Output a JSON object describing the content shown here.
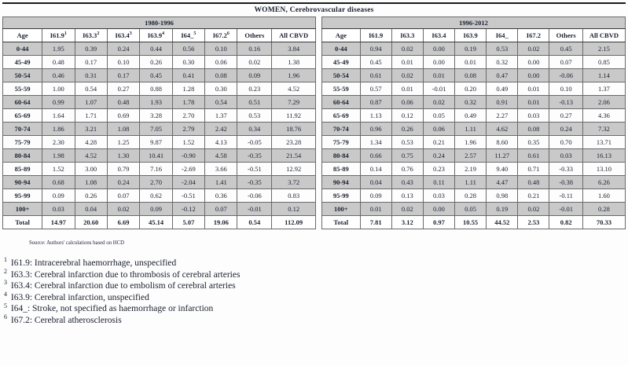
{
  "title": "WOMEN, Cerebrovascular diseases",
  "source": "Source: Authors' calculations based on HCD",
  "colors": {
    "row_shade": "#c9c9c9",
    "text": "#1c2130",
    "grid": "#6a6a6a"
  },
  "tables": [
    {
      "period": "1980-1996",
      "columns": [
        "Age",
        "I61.9",
        "I63.3",
        "I63.4",
        "I63.9",
        "I64_",
        "I67.2",
        "Others",
        "All CBVD"
      ],
      "column_sups": [
        "",
        "1",
        "2",
        "3",
        "4",
        "5",
        "6",
        "",
        ""
      ],
      "rows": [
        [
          "0-44",
          "1.95",
          "0.39",
          "0.24",
          "0.44",
          "0.56",
          "0.10",
          "0.16",
          "3.84"
        ],
        [
          "45-49",
          "0.48",
          "0.17",
          "0.10",
          "0.26",
          "0.30",
          "0.06",
          "0.02",
          "1.38"
        ],
        [
          "50-54",
          "0.46",
          "0.31",
          "0.17",
          "0.45",
          "0.41",
          "0.08",
          "0.09",
          "1.96"
        ],
        [
          "55-59",
          "1.00",
          "0.54",
          "0.27",
          "0.88",
          "1.28",
          "0.30",
          "0.23",
          "4.52"
        ],
        [
          "60-64",
          "0.99",
          "1.07",
          "0.48",
          "1.93",
          "1.78",
          "0.54",
          "0.51",
          "7.29"
        ],
        [
          "65-69",
          "1.64",
          "1.71",
          "0.69",
          "3.28",
          "2.70",
          "1.37",
          "0.53",
          "11.92"
        ],
        [
          "70-74",
          "1.86",
          "3.21",
          "1.08",
          "7.05",
          "2.79",
          "2.42",
          "0.34",
          "18.76"
        ],
        [
          "75-79",
          "2.30",
          "4.28",
          "1.25",
          "9.87",
          "1.52",
          "4.13",
          "-0.05",
          "23.28"
        ],
        [
          "80-84",
          "1.98",
          "4.52",
          "1.30",
          "10.41",
          "-0.90",
          "4.58",
          "-0.35",
          "21.54"
        ],
        [
          "85-89",
          "1.52",
          "3.00",
          "0.79",
          "7.16",
          "-2.69",
          "3.66",
          "-0.51",
          "12.92"
        ],
        [
          "90-94",
          "0.68",
          "1.08",
          "0.24",
          "2.70",
          "-2.04",
          "1.41",
          "-0.35",
          "3.72"
        ],
        [
          "95-99",
          "0.09",
          "0.26",
          "0.07",
          "0.62",
          "-0.51",
          "0.36",
          "-0.06",
          "0.83"
        ],
        [
          "100+",
          "0.03",
          "0.04",
          "0.02",
          "0.09",
          "-0.12",
          "0.07",
          "-0.01",
          "0.12"
        ],
        [
          "Total",
          "14.97",
          "20.60",
          "6.69",
          "45.14",
          "5.07",
          "19.06",
          "0.54",
          "112.09"
        ]
      ]
    },
    {
      "period": "1996-2012",
      "columns": [
        "Age",
        "I61.9",
        "I63.3",
        "I63.4",
        "I63.9",
        "I64_",
        "I67.2",
        "Others",
        "All CBVD"
      ],
      "column_sups": [
        "",
        "",
        "",
        "",
        "",
        "",
        "",
        "",
        ""
      ],
      "rows": [
        [
          "0-44",
          "0.94",
          "0.02",
          "0.00",
          "0.19",
          "0.53",
          "0.02",
          "0.45",
          "2.15"
        ],
        [
          "45-49",
          "0.45",
          "0.01",
          "0.00",
          "0.01",
          "0.32",
          "0.00",
          "0.07",
          "0.85"
        ],
        [
          "50-54",
          "0.61",
          "0.02",
          "0.01",
          "0.08",
          "0.47",
          "0.00",
          "-0.06",
          "1.14"
        ],
        [
          "55-59",
          "0.57",
          "0.01",
          "-0.01",
          "0.20",
          "0.49",
          "0.01",
          "0.10",
          "1.37"
        ],
        [
          "60-64",
          "0.87",
          "0.06",
          "0.02",
          "0.32",
          "0.91",
          "0.01",
          "-0.13",
          "2.06"
        ],
        [
          "65-69",
          "1.13",
          "0.12",
          "0.05",
          "0.49",
          "2.27",
          "0.03",
          "0.27",
          "4.36"
        ],
        [
          "70-74",
          "0.96",
          "0.26",
          "0.06",
          "1.11",
          "4.62",
          "0.08",
          "0.24",
          "7.32"
        ],
        [
          "75-79",
          "1.34",
          "0.53",
          "0.21",
          "1.96",
          "8.60",
          "0.35",
          "0.70",
          "13.71"
        ],
        [
          "80-84",
          "0.66",
          "0.75",
          "0.24",
          "2.57",
          "11.27",
          "0.61",
          "0.03",
          "16.13"
        ],
        [
          "85-89",
          "0.14",
          "0.76",
          "0.23",
          "2.19",
          "9.40",
          "0.71",
          "-0.33",
          "13.10"
        ],
        [
          "90-94",
          "0.04",
          "0.43",
          "0.11",
          "1.11",
          "4.47",
          "0.48",
          "-0.38",
          "6.26"
        ],
        [
          "95-99",
          "0.09",
          "0.13",
          "0.03",
          "0.28",
          "0.98",
          "0.21",
          "-0.11",
          "1.60"
        ],
        [
          "100+",
          "0.01",
          "0.02",
          "0.00",
          "0.05",
          "0.19",
          "0.02",
          "-0.01",
          "0.28"
        ],
        [
          "Total",
          "7.81",
          "3.12",
          "0.97",
          "10.55",
          "44.52",
          "2.53",
          "0.82",
          "70.33"
        ]
      ]
    }
  ],
  "footnotes": [
    {
      "sup": "1",
      "text": "I61.9: Intracerebral haemorrhage, unspecified"
    },
    {
      "sup": "2",
      "text": "I63.3: Cerebral infarction due to thrombosis of cerebral arteries"
    },
    {
      "sup": "3",
      "text": "I63.4: Cerebral infarction due to embolism of cerebral arteries"
    },
    {
      "sup": "4",
      "text": "I63.9: Cerebral infarction, unspecified"
    },
    {
      "sup": "5",
      "text": "I64_: Stroke, not specified as haemorrhage or infarction"
    },
    {
      "sup": "6",
      "text": "I67.2: Cerebral atherosclerosis"
    }
  ]
}
